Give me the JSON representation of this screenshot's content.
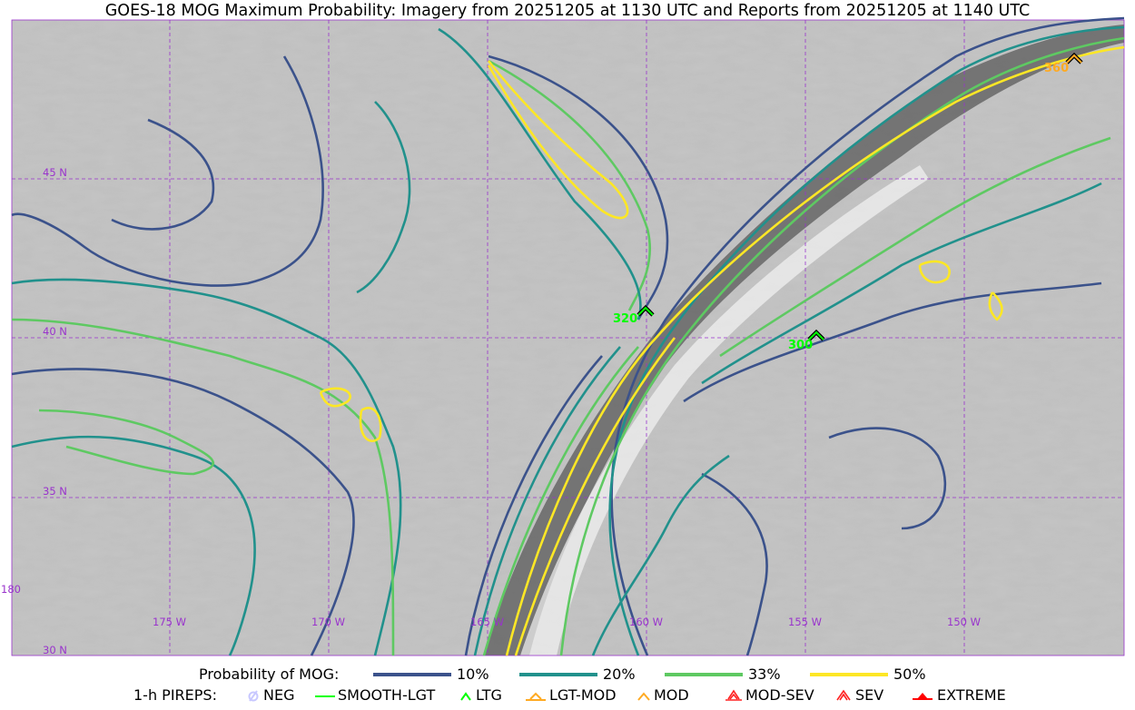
{
  "title": "GOES-18 MOG Maximum Probability: Imagery from 20251205 at 1130 UTC and Reports from 20251205 at 1140 UTC",
  "map": {
    "lat_labels": [
      "45 N",
      "40 N",
      "35 N",
      "30 N"
    ],
    "lon_labels": [
      "180",
      "175 W",
      "170 W",
      "165 W",
      "160 W",
      "155 W",
      "150 W"
    ],
    "grid_color": "#9933cc",
    "reports": [
      {
        "altitude": "320",
        "category": "LTG",
        "color": "#00ff00"
      },
      {
        "altitude": "300",
        "category": "LTG",
        "color": "#00ff00"
      },
      {
        "altitude": "360",
        "category": "MOD",
        "color": "#ffaa22"
      }
    ]
  },
  "legend": {
    "prob_title": "Probability of MOG:",
    "prob_levels": [
      {
        "label": "10%",
        "color": "#3b528b"
      },
      {
        "label": "20%",
        "color": "#21918c"
      },
      {
        "label": "33%",
        "color": "#5ec962"
      },
      {
        "label": "50%",
        "color": "#fde725"
      }
    ],
    "pirep_title": "1-h PIREPS:",
    "pireps": [
      {
        "label": "NEG",
        "color": "#c8c8ff",
        "icon": "neg-circle-slash-icon"
      },
      {
        "label": "SMOOTH-LGT",
        "color": "#00ff00",
        "icon": "line-icon"
      },
      {
        "label": "LTG",
        "color": "#00ff00",
        "icon": "caret-icon"
      },
      {
        "label": "LGT-MOD",
        "color": "#ffaa22",
        "icon": "caret-bar-icon"
      },
      {
        "label": "MOD",
        "color": "#ffaa22",
        "icon": "caret-icon"
      },
      {
        "label": "MOD-SEV",
        "color": "#ff2222",
        "icon": "double-caret-bar-icon"
      },
      {
        "label": "SEV",
        "color": "#ff2222",
        "icon": "double-caret-icon"
      },
      {
        "label": "EXTREME",
        "color": "#ff0000",
        "icon": "filled-triangle-icon"
      }
    ]
  }
}
